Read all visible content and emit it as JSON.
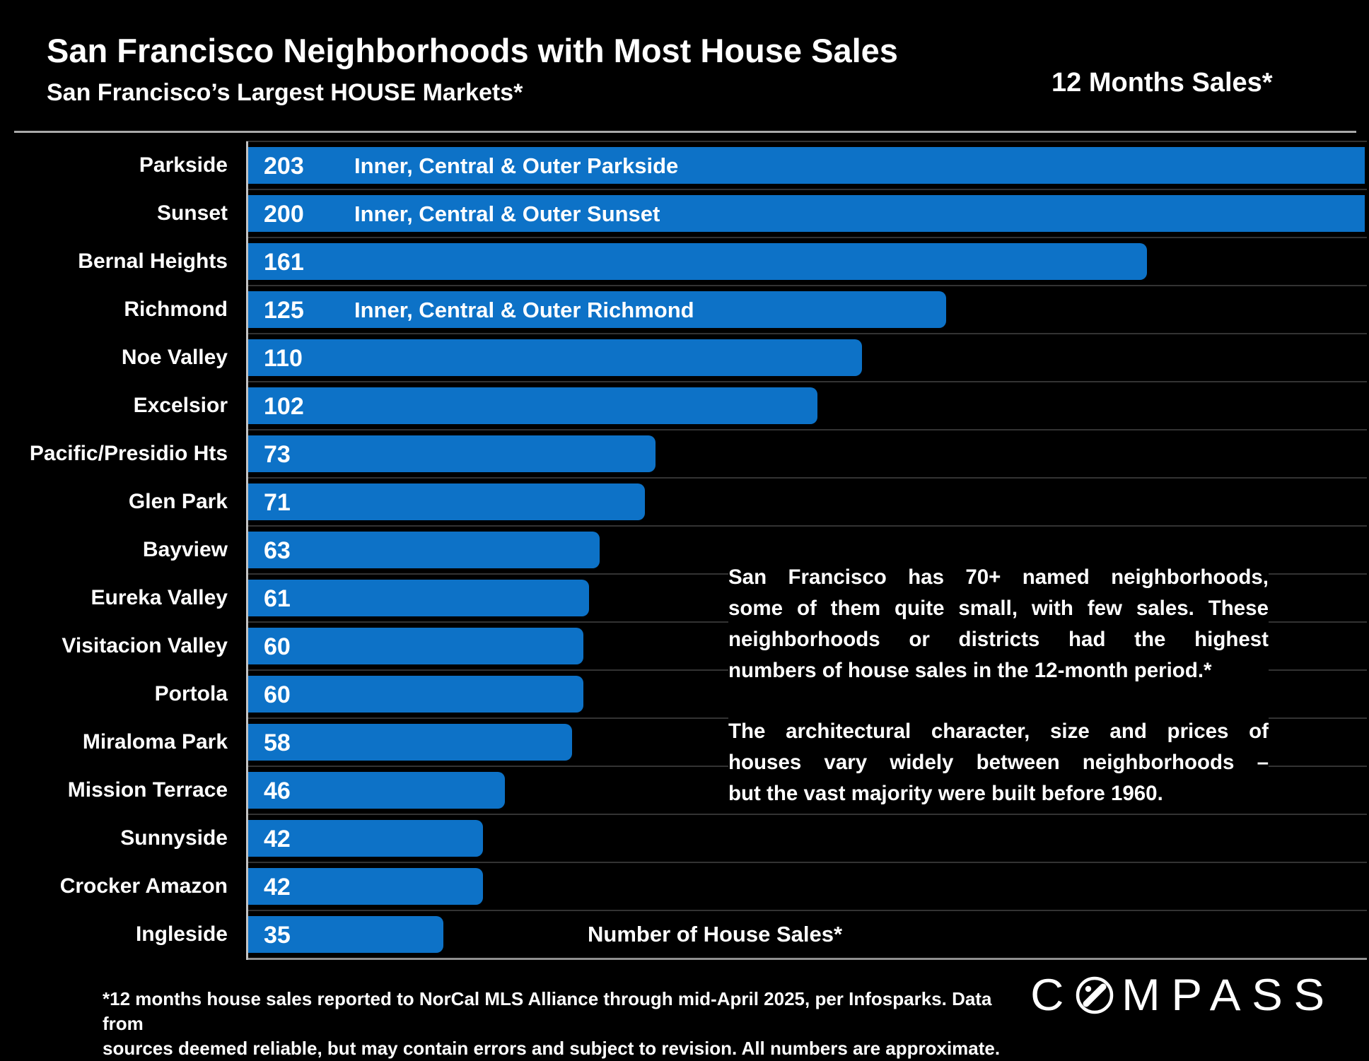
{
  "header": {
    "title": "San Francisco Neighborhoods with Most House Sales",
    "subtitle": "San Francisco’s Largest HOUSE Markets*",
    "period_label": "12 Months Sales*"
  },
  "chart_data": {
    "type": "bar",
    "orientation": "horizontal",
    "title": "San Francisco Neighborhoods with Most House Sales",
    "subtitle": "San Francisco’s Largest HOUSE Markets*",
    "xlabel": "Number of House Sales*",
    "xlim": [
      0,
      200
    ],
    "grid": "row-separators",
    "bar_color": "#0d72c7",
    "background_color": "#000000",
    "gridline_color": "#333333",
    "axis_line_color": "#c3c3c3",
    "categories": [
      "Parkside",
      "Sunset",
      "Bernal Heights",
      "Richmond",
      "Noe Valley",
      "Excelsior",
      "Pacific/Presidio Hts",
      "Glen Park",
      "Bayview",
      "Eureka Valley",
      "Visitacion Valley",
      "Portola",
      "Miraloma Park",
      "Mission Terrace",
      "Sunnyside",
      "Crocker Amazon",
      "Ingleside"
    ],
    "values": [
      203,
      200,
      161,
      125,
      110,
      102,
      73,
      71,
      63,
      61,
      60,
      60,
      58,
      46,
      42,
      42,
      35
    ],
    "bar_annotations": {
      "0": "Inner, Central & Outer Parkside",
      "1": "Inner, Central & Outer Sunset",
      "3": "Inner, Central & Outer Richmond"
    }
  },
  "annotation": {
    "para1_lines": [
      "San Francisco has 70+ named neighborhoods,",
      "some of them quite small, with few sales. These",
      "neighborhoods or districts had the highest",
      "numbers of house sales in the 12-month period.*"
    ],
    "para2_lines": [
      "The architectural character, size and prices of",
      "houses vary widely between neighborhoods –",
      "but the vast majority were built before 1960."
    ]
  },
  "footnote": {
    "line1": "*12 months house sales reported to NorCal MLS Alliance through mid-April 2025, per Infosparks. Data from",
    "line2": "sources deemed reliable, but may contain errors and subject to revision. All numbers are approximate."
  },
  "logo": {
    "letters_before_o": "C",
    "letters_after_o": "MPASS",
    "icon": "compass-needle-o-icon",
    "color": "#ffffff"
  }
}
